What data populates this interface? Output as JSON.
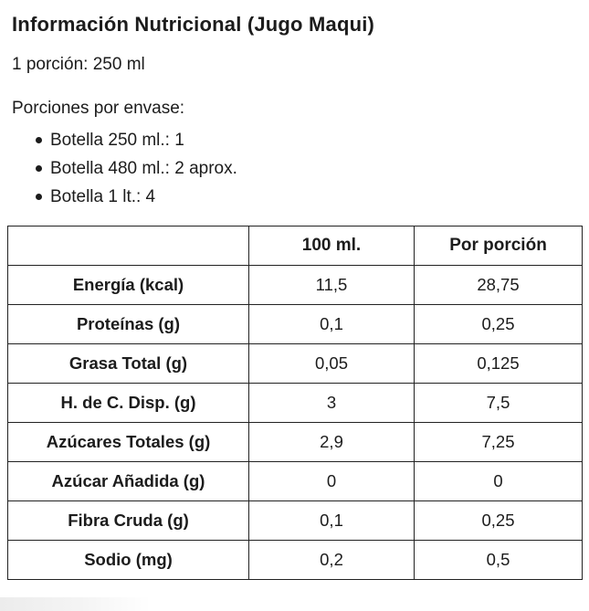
{
  "title": "Información Nutricional (Jugo Maqui)",
  "serving": "1 porción: 250 ml",
  "servings_per_container": {
    "label": "Porciones por envase:",
    "items": [
      "Botella 250 ml.: 1",
      "Botella 480 ml.: 2 aprox.",
      "Botella 1 lt.: 4"
    ]
  },
  "table": {
    "columns": [
      "",
      "100 ml.",
      "Por porción"
    ],
    "rows": [
      {
        "label": "Energía (kcal)",
        "per_100ml": "11,5",
        "per_portion": "28,75"
      },
      {
        "label": "Proteínas (g)",
        "per_100ml": "0,1",
        "per_portion": "0,25"
      },
      {
        "label": "Grasa Total (g)",
        "per_100ml": "0,05",
        "per_portion": "0,125"
      },
      {
        "label": "H. de C. Disp. (g)",
        "per_100ml": "3",
        "per_portion": "7,5"
      },
      {
        "label": "Azúcares Totales (g)",
        "per_100ml": "2,9",
        "per_portion": "7,25"
      },
      {
        "label": "Azúcar Añadida (g)",
        "per_100ml": "0",
        "per_portion": "0"
      },
      {
        "label": "Fibra Cruda (g)",
        "per_100ml": "0,1",
        "per_portion": "0,25"
      },
      {
        "label": "Sodio (mg)",
        "per_100ml": "0,2",
        "per_portion": "0,5"
      }
    ]
  },
  "colors": {
    "text": "#1c1c1c",
    "border": "#222222",
    "background": "#ffffff"
  }
}
